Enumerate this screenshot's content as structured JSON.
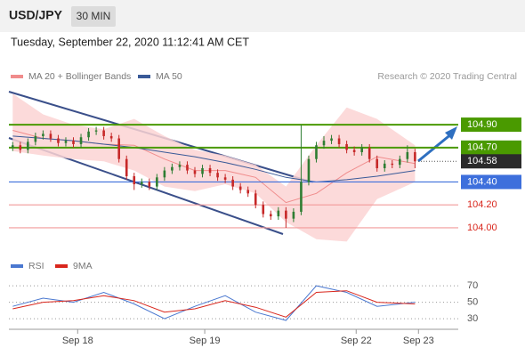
{
  "header": {
    "pair": "USD/JPY",
    "timeframe": "30 MIN",
    "datetime": "Tuesday, September 22, 2020 11:12:41 AM CET"
  },
  "chart_data": [
    {
      "type": "candlestick",
      "source": "Research © 2020 Trading Central",
      "xlim": [
        -0.5,
        58.7
      ],
      "ylim": [
        103.79,
        105.25
      ],
      "up_color": "#2e7d32",
      "down_color": "#c62828",
      "open": [
        104.7,
        104.72,
        104.68,
        104.75,
        104.8,
        104.82,
        104.78,
        104.74,
        104.76,
        104.73,
        104.79,
        104.84,
        104.85,
        104.8,
        104.78,
        104.6,
        104.45,
        104.38,
        104.4,
        104.36,
        104.44,
        104.5,
        104.53,
        104.55,
        104.5,
        104.47,
        104.52,
        104.48,
        104.44,
        104.42,
        104.36,
        104.33,
        104.3,
        104.2,
        104.12,
        104.1,
        104.15,
        104.08,
        104.14,
        104.4,
        104.6,
        104.72,
        104.76,
        104.78,
        104.73,
        104.68,
        104.66,
        104.7,
        104.6,
        104.52,
        104.56,
        104.55,
        104.6,
        104.66
      ],
      "high": [
        104.75,
        104.75,
        104.78,
        104.83,
        104.85,
        104.85,
        104.81,
        104.79,
        104.79,
        104.82,
        104.87,
        104.88,
        104.88,
        104.83,
        104.81,
        104.63,
        104.48,
        104.43,
        104.43,
        104.47,
        104.53,
        104.56,
        104.58,
        104.58,
        104.53,
        104.55,
        104.55,
        104.51,
        104.47,
        104.45,
        104.39,
        104.36,
        104.33,
        104.23,
        104.15,
        104.18,
        104.18,
        104.17,
        104.9,
        104.63,
        104.75,
        104.8,
        104.81,
        104.81,
        104.76,
        104.71,
        104.73,
        104.73,
        104.63,
        104.59,
        104.59,
        104.63,
        104.72,
        104.69
      ],
      "low": [
        104.67,
        104.65,
        104.65,
        104.72,
        104.77,
        104.75,
        104.71,
        104.71,
        104.7,
        104.7,
        104.76,
        104.81,
        104.77,
        104.75,
        104.57,
        104.42,
        104.33,
        104.35,
        104.33,
        104.33,
        104.41,
        104.47,
        104.5,
        104.47,
        104.44,
        104.44,
        104.45,
        104.41,
        104.39,
        104.33,
        104.3,
        104.27,
        104.17,
        104.09,
        104.07,
        104.07,
        104.0,
        104.05,
        104.11,
        104.37,
        104.57,
        104.69,
        104.73,
        104.7,
        104.65,
        104.63,
        104.63,
        104.57,
        104.49,
        104.49,
        104.52,
        104.52,
        104.57,
        104.52
      ],
      "close": [
        104.72,
        104.68,
        104.75,
        104.8,
        104.82,
        104.78,
        104.74,
        104.76,
        104.73,
        104.79,
        104.84,
        104.85,
        104.8,
        104.78,
        104.6,
        104.45,
        104.38,
        104.4,
        104.36,
        104.44,
        104.5,
        104.53,
        104.55,
        104.5,
        104.47,
        104.52,
        104.48,
        104.44,
        104.42,
        104.36,
        104.33,
        104.3,
        104.2,
        104.12,
        104.1,
        104.15,
        104.08,
        104.14,
        104.4,
        104.6,
        104.72,
        104.76,
        104.78,
        104.73,
        104.68,
        104.66,
        104.7,
        104.6,
        104.52,
        104.56,
        104.55,
        104.6,
        104.66,
        104.58
      ],
      "overlays": [
        {
          "name": "MA 20 + Bollinger Bands",
          "color": "#f08c8c",
          "band_color": "#fbd3d3",
          "x": [
            0,
            4,
            8,
            12,
            16,
            20,
            24,
            28,
            32,
            36,
            40,
            44,
            48,
            53
          ],
          "values": [
            104.85,
            104.78,
            104.76,
            104.73,
            104.72,
            104.6,
            104.5,
            104.5,
            104.44,
            104.22,
            104.3,
            104.48,
            104.62,
            104.56
          ],
          "upper": [
            105.17,
            104.99,
            104.9,
            104.86,
            104.95,
            104.8,
            104.68,
            104.63,
            104.55,
            104.36,
            104.72,
            105.05,
            104.95,
            104.72
          ],
          "lower": [
            104.67,
            104.63,
            104.6,
            104.58,
            104.5,
            104.36,
            104.32,
            104.38,
            104.3,
            104.05,
            103.9,
            103.88,
            104.25,
            104.4
          ]
        },
        {
          "name": "MA 50",
          "color": "#3a5a98",
          "x": [
            0,
            4,
            8,
            12,
            16,
            20,
            24,
            28,
            32,
            36,
            40,
            44,
            48,
            53
          ],
          "values": [
            104.8,
            104.78,
            104.76,
            104.73,
            104.7,
            104.66,
            104.62,
            104.57,
            104.51,
            104.44,
            104.4,
            104.42,
            104.45,
            104.5
          ]
        }
      ],
      "levels": [
        {
          "value": 104.9,
          "label": "104.90",
          "color": "#4a9a00",
          "boxed": true
        },
        {
          "value": 104.7,
          "label": "104.70",
          "color": "#4a9a00",
          "boxed": true
        },
        {
          "value": 104.4,
          "label": "104.40",
          "color": "#3d6fdc",
          "boxed": true
        },
        {
          "value": 104.2,
          "label": "104.20",
          "color": "#f29a9a",
          "boxed": false
        },
        {
          "value": 104.0,
          "label": "104.00",
          "color": "#f29a9a",
          "boxed": false
        }
      ],
      "last": {
        "value": 104.58,
        "label": "104.58",
        "color": "#2b2b2b"
      }
    },
    {
      "type": "line",
      "xlim": [
        -0.5,
        58.7
      ],
      "ylim": [
        15,
        82
      ],
      "yticks": [
        30,
        50,
        70
      ],
      "xticks": [
        {
          "value": 8.56,
          "label": "Sep 18"
        },
        {
          "value": 25.3,
          "label": "Sep 19"
        },
        {
          "value": 45.25,
          "label": "Sep 22"
        },
        {
          "value": 53.46,
          "label": "Sep 23"
        }
      ],
      "series": [
        {
          "name": "RSI",
          "color": "#4a78d0",
          "x": [
            0,
            4,
            8,
            12,
            16,
            20,
            24,
            28,
            32,
            36,
            40,
            44,
            48,
            53
          ],
          "values": [
            45,
            55,
            50,
            62,
            48,
            30,
            45,
            58,
            38,
            28,
            70,
            62,
            45,
            50
          ]
        },
        {
          "name": "9MA",
          "color": "#d9261c",
          "x": [
            0,
            4,
            8,
            12,
            16,
            20,
            24,
            28,
            32,
            36,
            40,
            44,
            48,
            53
          ],
          "values": [
            42,
            50,
            52,
            58,
            52,
            38,
            42,
            52,
            44,
            32,
            62,
            64,
            50,
            48
          ]
        }
      ]
    }
  ]
}
